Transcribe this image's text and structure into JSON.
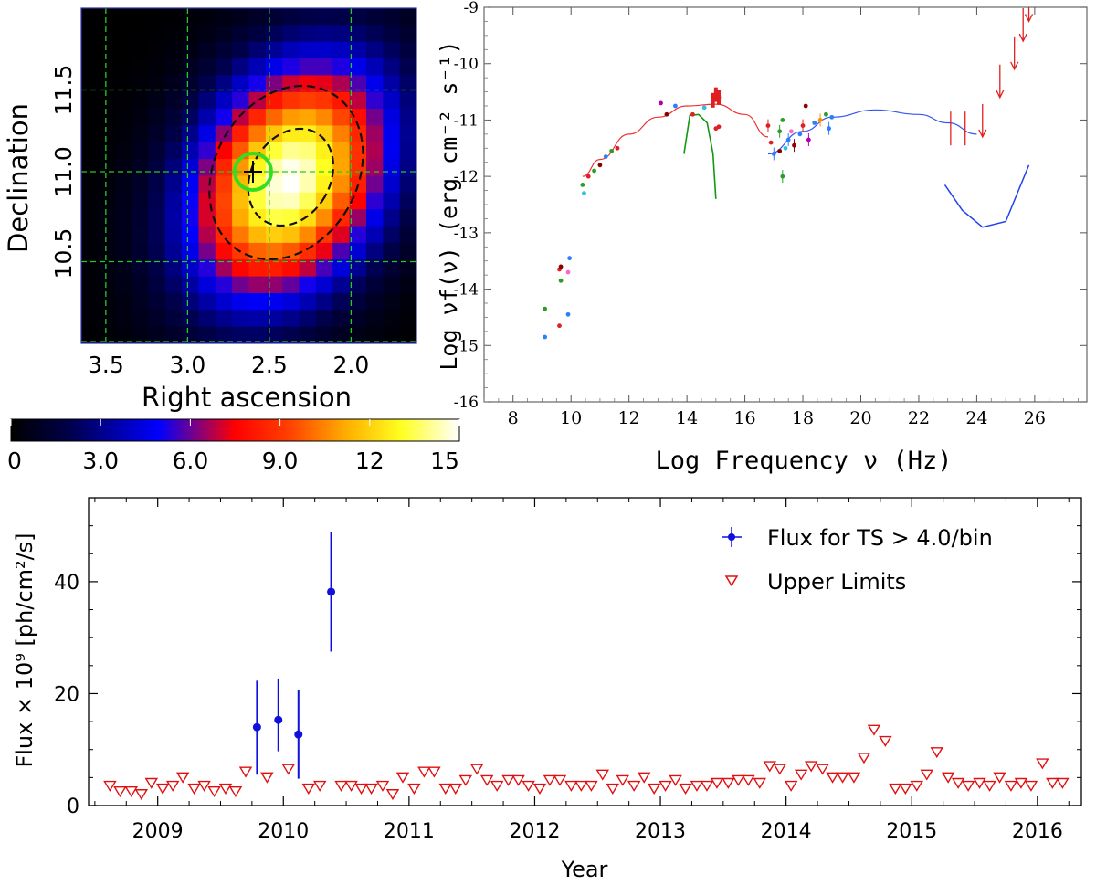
{
  "chart_data": [
    {
      "type": "heatmap",
      "xlabel": "Right ascension",
      "ylabel": "Declination",
      "x_ticks": [
        "3.5",
        "3.0",
        "2.5",
        "2.0"
      ],
      "x_tick_values": [
        3.5,
        3.0,
        2.5,
        2.0
      ],
      "y_ticks": [
        "10.5",
        "11.0",
        "11.5"
      ],
      "y_tick_values": [
        10.5,
        11.0,
        11.5
      ],
      "xlim": [
        3.65,
        1.6
      ],
      "ylim": [
        9.95,
        12.0
      ],
      "grid": "dashed-green",
      "colorbar": {
        "ticks": [
          "0",
          "3.0",
          "6.0",
          "9.0",
          "12",
          "15"
        ],
        "tick_values": [
          0,
          3,
          6,
          9,
          12,
          15
        ],
        "range": [
          0,
          15
        ]
      },
      "peak": {
        "ra": 2.38,
        "dec": 10.95,
        "value": 15
      },
      "source_marker": {
        "ra": 2.6,
        "dec": 11.0
      },
      "contours": [
        "dashed-inner",
        "dashed-outer"
      ]
    },
    {
      "type": "scatter",
      "xlabel": "Log Frequency ν (Hz)",
      "ylabel": "Log νf(ν) (erg cm⁻² s⁻¹)",
      "x_ticks": [
        "8",
        "10",
        "12",
        "14",
        "16",
        "18",
        "20",
        "22",
        "24",
        "26"
      ],
      "x_tick_values": [
        8,
        10,
        12,
        14,
        16,
        18,
        20,
        22,
        24,
        26
      ],
      "y_ticks": [
        "-9",
        "-10",
        "-11",
        "-12",
        "-13",
        "-14",
        "-15",
        "-16"
      ],
      "y_tick_values": [
        -9,
        -10,
        -11,
        -12,
        -13,
        -14,
        -15,
        -16
      ],
      "xlim": [
        7,
        27.8
      ],
      "ylim": [
        -16,
        -9
      ],
      "sync_curve": [
        [
          10.4,
          -12.0
        ],
        [
          11,
          -11.7
        ],
        [
          12,
          -11.25
        ],
        [
          13,
          -10.95
        ],
        [
          14,
          -10.75
        ],
        [
          15,
          -10.72
        ],
        [
          16,
          -10.9
        ],
        [
          16.8,
          -11.3
        ]
      ],
      "ic_curve": [
        [
          16.8,
          -11.6
        ],
        [
          18,
          -11.2
        ],
        [
          19,
          -10.95
        ],
        [
          20.5,
          -10.82
        ],
        [
          22,
          -10.9
        ],
        [
          23,
          -11.05
        ],
        [
          24,
          -11.25
        ]
      ],
      "host_curve": [
        [
          13.9,
          -11.6
        ],
        [
          14.1,
          -10.92
        ],
        [
          14.4,
          -10.9
        ],
        [
          14.7,
          -11.05
        ],
        [
          14.9,
          -11.6
        ],
        [
          15.0,
          -12.4
        ]
      ],
      "sensitivity_curve": [
        [
          22.9,
          -12.15
        ],
        [
          23.5,
          -12.6
        ],
        [
          24.2,
          -12.9
        ],
        [
          25.0,
          -12.8
        ],
        [
          25.8,
          -11.8
        ]
      ],
      "radio_points": [
        {
          "x": 9.1,
          "y": -14.35,
          "c": "#2a9d2a"
        },
        {
          "x": 9.1,
          "y": -14.85,
          "c": "#2a7fff"
        },
        {
          "x": 9.6,
          "y": -13.65,
          "c": "#e02020"
        },
        {
          "x": 9.65,
          "y": -13.6,
          "c": "#8b0000"
        },
        {
          "x": 9.65,
          "y": -13.85,
          "c": "#2a9d2a"
        },
        {
          "x": 9.6,
          "y": -14.65,
          "c": "#e02020"
        },
        {
          "x": 9.9,
          "y": -13.7,
          "c": "#ff66cc"
        },
        {
          "x": 9.95,
          "y": -13.45,
          "c": "#2a7fff"
        },
        {
          "x": 9.9,
          "y": -14.45,
          "c": "#2a7fff"
        }
      ],
      "mm_points": [
        {
          "x": 10.4,
          "y": -12.15,
          "c": "#2a9d2a"
        },
        {
          "x": 10.45,
          "y": -12.3,
          "c": "#30c0e0"
        },
        {
          "x": 10.6,
          "y": -12.0,
          "c": "#e02020"
        },
        {
          "x": 10.8,
          "y": -11.9,
          "c": "#2a9d2a"
        },
        {
          "x": 11.0,
          "y": -11.8,
          "c": "#8b0000"
        },
        {
          "x": 11.2,
          "y": -11.65,
          "c": "#2a7fff"
        },
        {
          "x": 11.4,
          "y": -11.55,
          "c": "#2a9d2a"
        },
        {
          "x": 11.6,
          "y": -11.5,
          "c": "#e02020"
        }
      ],
      "optical_points": [
        {
          "x": 13.1,
          "y": -10.7,
          "c": "#b000b0"
        },
        {
          "x": 13.3,
          "y": -10.9,
          "c": "#8b0000"
        },
        {
          "x": 13.6,
          "y": -10.75,
          "c": "#2a7fff"
        },
        {
          "x": 14.2,
          "y": -10.9,
          "c": "#e02020"
        },
        {
          "x": 14.6,
          "y": -10.78,
          "c": "#30c0e0"
        },
        {
          "x": 14.9,
          "y": -10.65,
          "c": "#e02020"
        },
        {
          "x": 15.0,
          "y": -10.55,
          "c": "#e02020"
        },
        {
          "x": 15.1,
          "y": -10.6,
          "c": "#e02020"
        },
        {
          "x": 15.0,
          "y": -11.15,
          "c": "#e02020"
        },
        {
          "x": 15.1,
          "y": -11.12,
          "c": "#e02020"
        }
      ],
      "xray_points": [
        {
          "x": 16.8,
          "y": -11.1,
          "c": "#e02020"
        },
        {
          "x": 16.9,
          "y": -11.4,
          "c": "#e02020"
        },
        {
          "x": 17.2,
          "y": -11.2,
          "c": "#2a9d2a"
        },
        {
          "x": 17.3,
          "y": -11.0,
          "c": "#2a9d2a"
        },
        {
          "x": 17.3,
          "y": -12.0,
          "c": "#2a9d2a"
        },
        {
          "x": 17.4,
          "y": -11.5,
          "c": "#30c0e0"
        },
        {
          "x": 17.5,
          "y": -11.35,
          "c": "#2a7fff"
        },
        {
          "x": 17.6,
          "y": -11.2,
          "c": "#ff66cc"
        },
        {
          "x": 17.7,
          "y": -11.45,
          "c": "#8b0000"
        },
        {
          "x": 17.9,
          "y": -11.25,
          "c": "#2a7fff"
        },
        {
          "x": 18.0,
          "y": -11.1,
          "c": "#e02020"
        },
        {
          "x": 18.1,
          "y": -10.75,
          "c": "#8b0000"
        },
        {
          "x": 18.2,
          "y": -11.35,
          "c": "#b000b0"
        },
        {
          "x": 18.4,
          "y": -11.05,
          "c": "#2a7fff"
        },
        {
          "x": 18.6,
          "y": -11.0,
          "c": "#ff8c00"
        },
        {
          "x": 18.8,
          "y": -10.9,
          "c": "#2a9d2a"
        },
        {
          "x": 18.9,
          "y": -11.15,
          "c": "#2a7fff"
        },
        {
          "x": 19.0,
          "y": -10.95,
          "c": "#2a7fff"
        },
        {
          "x": 17.0,
          "y": -11.6,
          "c": "#2a7fff"
        },
        {
          "x": 17.2,
          "y": -11.55,
          "c": "#8b0000"
        }
      ],
      "gamma_points": [
        {
          "x": 23.1,
          "y": -11.15,
          "ylo": -11.45,
          "yhi": -10.85
        },
        {
          "x": 23.6,
          "y": -11.15,
          "ylo": -11.45,
          "yhi": -10.85
        }
      ],
      "upper_limits": [
        {
          "x": 24.2,
          "y": -11.3
        },
        {
          "x": 24.8,
          "y": -10.6
        },
        {
          "x": 25.3,
          "y": -10.1
        },
        {
          "x": 25.6,
          "y": -9.6
        },
        {
          "x": 25.8,
          "y": -9.25
        }
      ]
    },
    {
      "type": "scatter",
      "xlabel": "Year",
      "ylabel": "Flux × 10⁹ [ph/cm²/s]",
      "xlim": [
        2008.45,
        2016.35
      ],
      "ylim": [
        0,
        55
      ],
      "x_ticks": [
        "2009",
        "2010",
        "2011",
        "2012",
        "2013",
        "2014",
        "2015",
        "2016"
      ],
      "x_tick_values": [
        2009,
        2010,
        2011,
        2012,
        2013,
        2014,
        2015,
        2016
      ],
      "y_ticks": [
        "0",
        "20",
        "40"
      ],
      "y_tick_values": [
        0,
        20,
        40
      ],
      "legend": "top-right",
      "series": [
        {
          "name": "Flux for TS > 4.0/bin",
          "marker": "filled-circle",
          "color": "#1010dd",
          "x": [
            2009.79,
            2009.96,
            2010.12,
            2010.38
          ],
          "y": [
            14.0,
            15.3,
            12.7,
            38.2
          ],
          "yerr_low": [
            5.5,
            9.7,
            4.8,
            27.5
          ],
          "yerr_high": [
            22.3,
            22.7,
            20.7,
            48.9
          ]
        },
        {
          "name": "Upper Limits",
          "marker": "open-triangle-down",
          "color": "#e01010",
          "x": [
            2008.62,
            2008.7,
            2008.79,
            2008.87,
            2008.95,
            2009.04,
            2009.12,
            2009.2,
            2009.29,
            2009.37,
            2009.45,
            2009.54,
            2009.62,
            2009.7,
            2009.87,
            2010.04,
            2010.2,
            2010.29,
            2010.46,
            2010.54,
            2010.62,
            2010.7,
            2010.79,
            2010.87,
            2010.95,
            2011.04,
            2011.12,
            2011.2,
            2011.29,
            2011.37,
            2011.45,
            2011.54,
            2011.62,
            2011.7,
            2011.79,
            2011.87,
            2011.95,
            2012.04,
            2012.12,
            2012.2,
            2012.29,
            2012.37,
            2012.45,
            2012.54,
            2012.62,
            2012.7,
            2012.79,
            2012.87,
            2012.95,
            2013.04,
            2013.12,
            2013.2,
            2013.29,
            2013.37,
            2013.45,
            2013.54,
            2013.62,
            2013.7,
            2013.79,
            2013.87,
            2013.95,
            2014.04,
            2014.12,
            2014.2,
            2014.29,
            2014.37,
            2014.45,
            2014.54,
            2014.62,
            2014.7,
            2014.79,
            2014.87,
            2014.95,
            2015.04,
            2015.12,
            2015.2,
            2015.29,
            2015.37,
            2015.45,
            2015.54,
            2015.62,
            2015.7,
            2015.79,
            2015.87,
            2015.95,
            2016.04,
            2016.12,
            2016.2
          ],
          "y": [
            3.5,
            2.5,
            2.5,
            2.0,
            4.0,
            3.0,
            3.5,
            5.0,
            3.0,
            3.5,
            2.5,
            3.0,
            2.5,
            6.0,
            5.0,
            6.5,
            3.0,
            3.5,
            3.5,
            3.5,
            3.0,
            3.0,
            3.5,
            2.0,
            5.0,
            3.0,
            6.0,
            6.0,
            3.0,
            3.0,
            4.5,
            6.5,
            4.5,
            3.5,
            4.5,
            4.5,
            3.5,
            3.0,
            4.5,
            4.5,
            3.5,
            3.5,
            3.5,
            5.5,
            3.0,
            4.5,
            3.5,
            5.0,
            3.0,
            3.5,
            4.5,
            3.0,
            3.5,
            3.5,
            4.0,
            4.0,
            4.5,
            4.5,
            4.0,
            7.0,
            6.5,
            3.5,
            5.5,
            7.0,
            6.5,
            5.0,
            5.0,
            5.0,
            8.5,
            13.5,
            11.5,
            3.0,
            3.0,
            3.5,
            5.5,
            9.5,
            5.0,
            4.0,
            3.5,
            4.0,
            3.5,
            5.0,
            3.5,
            4.0,
            3.5,
            7.5,
            4.0,
            4.0
          ]
        }
      ]
    }
  ]
}
